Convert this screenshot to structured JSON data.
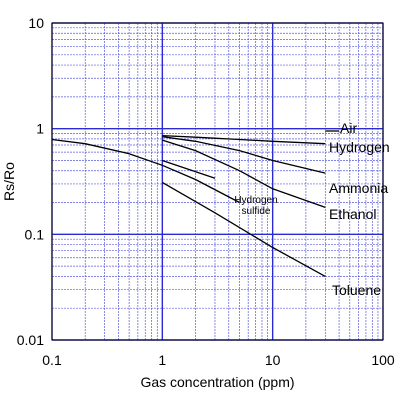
{
  "chart_data": {
    "type": "line",
    "xlabel": "Gas concentration (ppm)",
    "ylabel": "Rs/Ro",
    "x_scale": "log",
    "y_scale": "log",
    "xlim": [
      0.1,
      100
    ],
    "ylim": [
      0.01,
      10
    ],
    "x_ticks": [
      "0.1",
      "1",
      "10",
      "100"
    ],
    "y_ticks": [
      "0.01",
      "0.1",
      "1",
      "10"
    ],
    "grid": true,
    "colors": {
      "grid": "#2b2bd6",
      "gridMinor": "#5a5ae0",
      "line": "#000000"
    },
    "series": [
      {
        "name": "Air",
        "x": [
          30,
          40
        ],
        "y": [
          0.95,
          0.95
        ]
      },
      {
        "name": "Hydrogen",
        "x": [
          1,
          2,
          5,
          10,
          30
        ],
        "y": [
          0.86,
          0.83,
          0.79,
          0.76,
          0.72
        ]
      },
      {
        "name": "Ammonia",
        "x": [
          1,
          2,
          5,
          10,
          30
        ],
        "y": [
          0.84,
          0.76,
          0.62,
          0.5,
          0.38
        ]
      },
      {
        "name": "Ethanol",
        "x": [
          1,
          2,
          5,
          10,
          30
        ],
        "y": [
          0.78,
          0.62,
          0.4,
          0.27,
          0.18
        ]
      },
      {
        "name": "Hydrogen\nsulfide",
        "x": [
          1,
          3
        ],
        "y": [
          0.5,
          0.34
        ]
      },
      {
        "name": "Toluene",
        "x": [
          1,
          3,
          10,
          30
        ],
        "y": [
          0.31,
          0.16,
          0.075,
          0.04
        ]
      },
      {
        "name": "",
        "x": [
          0.1,
          0.2,
          0.5,
          1,
          2,
          5
        ],
        "y": [
          0.79,
          0.72,
          0.58,
          0.45,
          0.33,
          0.2
        ]
      }
    ]
  }
}
